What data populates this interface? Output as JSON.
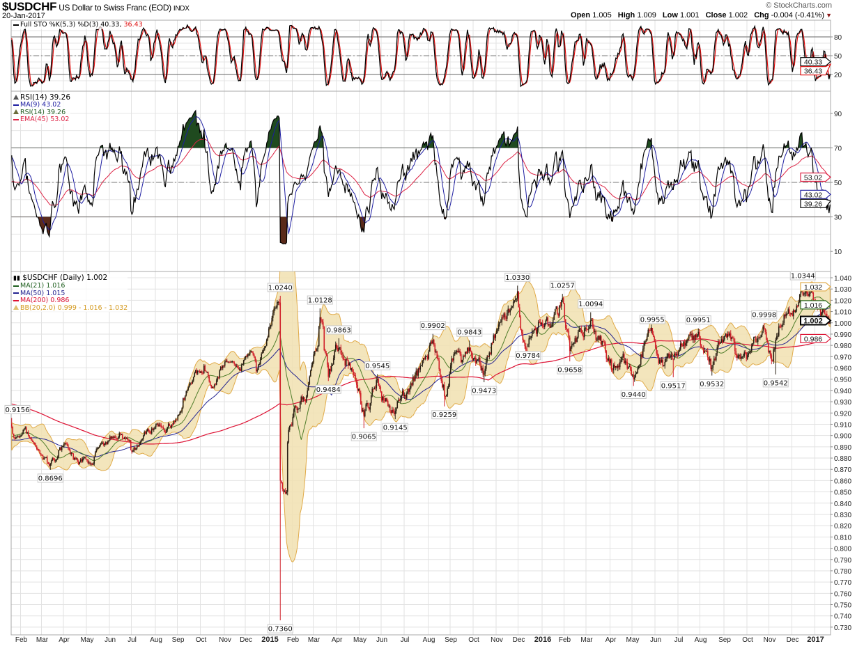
{
  "header": {
    "symbol": "$USDCHF",
    "name": "US Dollar to Swiss Franc (EOD)",
    "exchange": "INDX",
    "date": "20-Jan-2017",
    "brand": "© StockCharts.com",
    "open_label": "Open",
    "open": "1.005",
    "high_label": "High",
    "high": "1.009",
    "low_label": "Low",
    "low": "1.001",
    "close_label": "Close",
    "close": "1.002",
    "chg_label": "Chg",
    "chg": "-0.004 (-0.41%)"
  },
  "colors": {
    "up_bar": "#2b2014",
    "down_bar": "#d0202a",
    "ma21": "#4f7d2a",
    "ma50": "#23238f",
    "ma200": "#dd1133",
    "bb_fill": "#f1e1b0",
    "bb_line": "#e0aa48",
    "sto_k": "#000000",
    "sto_d": "#e01010",
    "rsi": "#000000",
    "rsi_ma": "#1c1ca0",
    "rsi_ema": "#dd2244",
    "rsi_over": "#1f4a1f",
    "rsi_under": "#5a2a1a"
  },
  "chart_data": [
    {
      "type": "line",
      "title": "Full STO %K(5,3) %D(3)",
      "legend": {
        "label": "Full STO %K(5,3) %D(3)",
        "k": "40.33",
        "sep": ",",
        "d": "36.43"
      },
      "series": [
        {
          "name": "%K",
          "last": 40.33
        },
        {
          "name": "%D",
          "last": 36.43
        }
      ],
      "ylim": [
        0,
        100
      ],
      "y_ticks": [
        "80",
        "50",
        "20"
      ],
      "reference_lines": [
        80,
        50,
        20
      ],
      "tags": [
        {
          "text": "40.33",
          "value": 40.33,
          "color": "#000000"
        },
        {
          "text": "36.43",
          "value": 36.43,
          "color": "#e01010"
        }
      ]
    },
    {
      "type": "line",
      "title": "RSI(14)",
      "legend": {
        "title": "RSI(14) 39.26",
        "ma": "MA(9) 43.02",
        "rsi": "RSI(14) 39.26",
        "ema": "EMA(45) 53.02"
      },
      "series": [
        {
          "name": "RSI(14)",
          "last": 39.26
        },
        {
          "name": "MA(9)",
          "last": 43.02
        },
        {
          "name": "EMA(45)",
          "last": 53.02
        }
      ],
      "ylim": [
        0,
        100
      ],
      "y_ticks": [
        "90",
        "70",
        "50",
        "30",
        "10"
      ],
      "reference_lines": [
        70,
        50,
        30
      ],
      "tags": [
        {
          "text": "53.02",
          "value": 53.02,
          "color": "#dd2244"
        },
        {
          "text": "43.02",
          "value": 43.02,
          "color": "#1c1ca0"
        },
        {
          "text": "39.26",
          "value": 39.26,
          "color": "#000000"
        }
      ]
    },
    {
      "type": "line",
      "title": "$USDCHF (Daily) 1.002",
      "legend": {
        "title": "$USDCHF (Daily) 1.002",
        "ma21": "MA(21) 1.016",
        "ma50": "MA(50) 1.015",
        "ma200": "MA(200) 0.986",
        "bb": "BB(20,2.0) 0.999 - 1.016 - 1.032"
      },
      "x_range": [
        "2014-01-21",
        "2017-01-20"
      ],
      "ylim": [
        0.725,
        1.045
      ],
      "y_ticks": [
        "1.040",
        "1.030",
        "1.020",
        "1.010",
        "1.000",
        "0.990",
        "0.980",
        "0.970",
        "0.960",
        "0.950",
        "0.940",
        "0.930",
        "0.920",
        "0.910",
        "0.900",
        "0.890",
        "0.880",
        "0.870",
        "0.860",
        "0.850",
        "0.840",
        "0.830",
        "0.820",
        "0.810",
        "0.800",
        "0.790",
        "0.780",
        "0.770",
        "0.760",
        "0.750",
        "0.740",
        "0.730"
      ],
      "x_labels": [
        "Feb",
        "Mar",
        "Apr",
        "May",
        "Jun",
        "Jul",
        "Aug",
        "Sep",
        "Oct",
        "Nov",
        "Dec",
        "2015",
        "Feb",
        "Mar",
        "Apr",
        "May",
        "Jun",
        "Jul",
        "Aug",
        "Sep",
        "Oct",
        "Nov",
        "Dec",
        "2016",
        "Feb",
        "Mar",
        "Apr",
        "May",
        "Jun",
        "Jul",
        "Aug",
        "Sep",
        "Oct",
        "Nov",
        "Dec",
        "2017"
      ],
      "close_keypoints": [
        [
          "2014-01-21",
          0.908
        ],
        [
          "2014-01-24",
          0.897
        ],
        [
          "2014-02-05",
          0.905
        ],
        [
          "2014-02-20",
          0.892
        ],
        [
          "2014-03-03",
          0.882
        ],
        [
          "2014-03-13",
          0.875
        ],
        [
          "2014-03-25",
          0.887
        ],
        [
          "2014-04-04",
          0.892
        ],
        [
          "2014-04-15",
          0.88
        ],
        [
          "2014-05-08",
          0.874
        ],
        [
          "2014-05-20",
          0.893
        ],
        [
          "2014-06-05",
          0.898
        ],
        [
          "2014-06-13",
          0.902
        ],
        [
          "2014-06-30",
          0.887
        ],
        [
          "2014-07-15",
          0.897
        ],
        [
          "2014-08-01",
          0.91
        ],
        [
          "2014-08-15",
          0.905
        ],
        [
          "2014-09-01",
          0.918
        ],
        [
          "2014-09-08",
          0.933
        ],
        [
          "2014-09-25",
          0.955
        ],
        [
          "2014-10-06",
          0.962
        ],
        [
          "2014-10-15",
          0.942
        ],
        [
          "2014-10-31",
          0.962
        ],
        [
          "2014-11-10",
          0.965
        ],
        [
          "2014-11-25",
          0.963
        ],
        [
          "2014-12-08",
          0.975
        ],
        [
          "2014-12-15",
          0.957
        ],
        [
          "2014-12-31",
          0.995
        ],
        [
          "2015-01-14",
          1.018
        ],
        [
          "2015-01-15",
          0.86
        ],
        [
          "2015-01-16",
          0.858
        ],
        [
          "2015-01-23",
          0.85
        ],
        [
          "2015-01-27",
          0.905
        ],
        [
          "2015-02-05",
          0.925
        ],
        [
          "2015-02-20",
          0.94
        ],
        [
          "2015-03-04",
          0.975
        ],
        [
          "2015-03-10",
          1.005
        ],
        [
          "2015-03-20",
          0.952
        ],
        [
          "2015-04-03",
          0.978
        ],
        [
          "2015-04-14",
          0.968
        ],
        [
          "2015-04-28",
          0.945
        ],
        [
          "2015-05-07",
          0.917
        ],
        [
          "2015-05-14",
          0.923
        ],
        [
          "2015-05-26",
          0.95
        ],
        [
          "2015-06-05",
          0.933
        ],
        [
          "2015-06-18",
          0.922
        ],
        [
          "2015-06-30",
          0.935
        ],
        [
          "2015-07-10",
          0.945
        ],
        [
          "2015-07-31",
          0.968
        ],
        [
          "2015-08-07",
          0.985
        ],
        [
          "2015-08-21",
          0.945
        ],
        [
          "2015-08-24",
          0.935
        ],
        [
          "2015-09-04",
          0.972
        ],
        [
          "2015-09-15",
          0.965
        ],
        [
          "2015-09-25",
          0.978
        ],
        [
          "2015-10-15",
          0.955
        ],
        [
          "2015-10-30",
          0.99
        ],
        [
          "2015-11-10",
          1.005
        ],
        [
          "2015-11-25",
          1.02
        ],
        [
          "2015-11-30",
          1.028
        ],
        [
          "2015-12-03",
          0.994
        ],
        [
          "2015-12-14",
          0.981
        ],
        [
          "2015-12-31",
          1.0
        ],
        [
          "2016-01-08",
          0.998
        ],
        [
          "2016-01-21",
          1.008
        ],
        [
          "2016-01-28",
          1.022
        ],
        [
          "2016-02-08",
          0.975
        ],
        [
          "2016-02-26",
          0.995
        ],
        [
          "2016-03-07",
          1.002
        ],
        [
          "2016-03-15",
          0.985
        ],
        [
          "2016-03-25",
          0.975
        ],
        [
          "2016-04-05",
          0.958
        ],
        [
          "2016-04-20",
          0.964
        ],
        [
          "2016-05-03",
          0.95
        ],
        [
          "2016-05-12",
          0.972
        ],
        [
          "2016-05-27",
          0.99
        ],
        [
          "2016-06-10",
          0.962
        ],
        [
          "2016-06-24",
          0.968
        ],
        [
          "2016-07-06",
          0.98
        ],
        [
          "2016-07-20",
          0.985
        ],
        [
          "2016-07-28",
          0.992
        ],
        [
          "2016-08-05",
          0.975
        ],
        [
          "2016-08-16",
          0.96
        ],
        [
          "2016-08-30",
          0.983
        ],
        [
          "2016-09-15",
          0.975
        ],
        [
          "2016-09-30",
          0.968
        ],
        [
          "2016-10-10",
          0.982
        ],
        [
          "2016-10-25",
          0.995
        ],
        [
          "2016-11-04",
          0.966
        ],
        [
          "2016-11-09",
          0.985
        ],
        [
          "2016-11-25",
          1.012
        ],
        [
          "2016-12-06",
          1.011
        ],
        [
          "2016-12-15",
          1.025
        ],
        [
          "2016-12-29",
          1.02
        ],
        [
          "2017-01-06",
          1.013
        ],
        [
          "2017-01-13",
          1.008
        ],
        [
          "2017-01-20",
          1.002
        ]
      ],
      "annotations": [
        {
          "text": "0.9156",
          "date": "2014-01-21",
          "value": 0.9156,
          "type": "high"
        },
        {
          "text": "0.8696",
          "date": "2014-03-13",
          "value": 0.8696,
          "type": "low"
        },
        {
          "text": "1.0240",
          "date": "2015-01-15",
          "value": 1.024,
          "type": "high"
        },
        {
          "text": "0.7360",
          "date": "2015-01-15",
          "value": 0.736,
          "type": "low"
        },
        {
          "text": "1.0128",
          "date": "2015-03-10",
          "value": 1.0128,
          "type": "high"
        },
        {
          "text": "0.9484",
          "date": "2015-03-20",
          "value": 0.9484,
          "type": "low"
        },
        {
          "text": "0.9863",
          "date": "2015-04-03",
          "value": 0.9863,
          "type": "high"
        },
        {
          "text": "0.9065",
          "date": "2015-05-07",
          "value": 0.9065,
          "type": "low"
        },
        {
          "text": "0.9545",
          "date": "2015-05-26",
          "value": 0.9545,
          "type": "high"
        },
        {
          "text": "0.9145",
          "date": "2015-06-18",
          "value": 0.9145,
          "type": "low"
        },
        {
          "text": "0.9902",
          "date": "2015-08-07",
          "value": 0.9902,
          "type": "high"
        },
        {
          "text": "0.9259",
          "date": "2015-08-24",
          "value": 0.9259,
          "type": "low"
        },
        {
          "text": "0.9843",
          "date": "2015-09-25",
          "value": 0.9843,
          "type": "high"
        },
        {
          "text": "0.9473",
          "date": "2015-10-15",
          "value": 0.9473,
          "type": "low"
        },
        {
          "text": "1.0330",
          "date": "2015-11-30",
          "value": 1.033,
          "type": "high"
        },
        {
          "text": "0.9784",
          "date": "2015-12-14",
          "value": 0.9784,
          "type": "low"
        },
        {
          "text": "1.0257",
          "date": "2016-01-28",
          "value": 1.0257,
          "type": "high"
        },
        {
          "text": "0.9658",
          "date": "2016-02-08",
          "value": 0.9658,
          "type": "low"
        },
        {
          "text": "1.0094",
          "date": "2016-03-07",
          "value": 1.0094,
          "type": "high"
        },
        {
          "text": "0.9440",
          "date": "2016-05-03",
          "value": 0.944,
          "type": "low"
        },
        {
          "text": "0.9955",
          "date": "2016-05-27",
          "value": 0.9955,
          "type": "high"
        },
        {
          "text": "0.9517",
          "date": "2016-06-24",
          "value": 0.9517,
          "type": "low"
        },
        {
          "text": "0.9951",
          "date": "2016-07-28",
          "value": 0.9951,
          "type": "high"
        },
        {
          "text": "0.9532",
          "date": "2016-08-16",
          "value": 0.9532,
          "type": "low"
        },
        {
          "text": "0.9998",
          "date": "2016-10-25",
          "value": 0.9998,
          "type": "high"
        },
        {
          "text": "0.9542",
          "date": "2016-11-09",
          "value": 0.9542,
          "type": "low"
        },
        {
          "text": "1.0344",
          "date": "2016-12-15",
          "value": 1.0344,
          "type": "high"
        }
      ],
      "tags": [
        {
          "text": "1.032",
          "value": 1.032,
          "color": "#e0aa48",
          "bold": false
        },
        {
          "text": "1.016",
          "value": 1.016,
          "color": "#2f6b1f",
          "bold": false
        },
        {
          "text": "1.002",
          "value": 1.002,
          "color": "#000000",
          "bold": true
        },
        {
          "text": "0.986",
          "value": 0.986,
          "color": "#dd1133",
          "bold": false
        }
      ]
    }
  ]
}
